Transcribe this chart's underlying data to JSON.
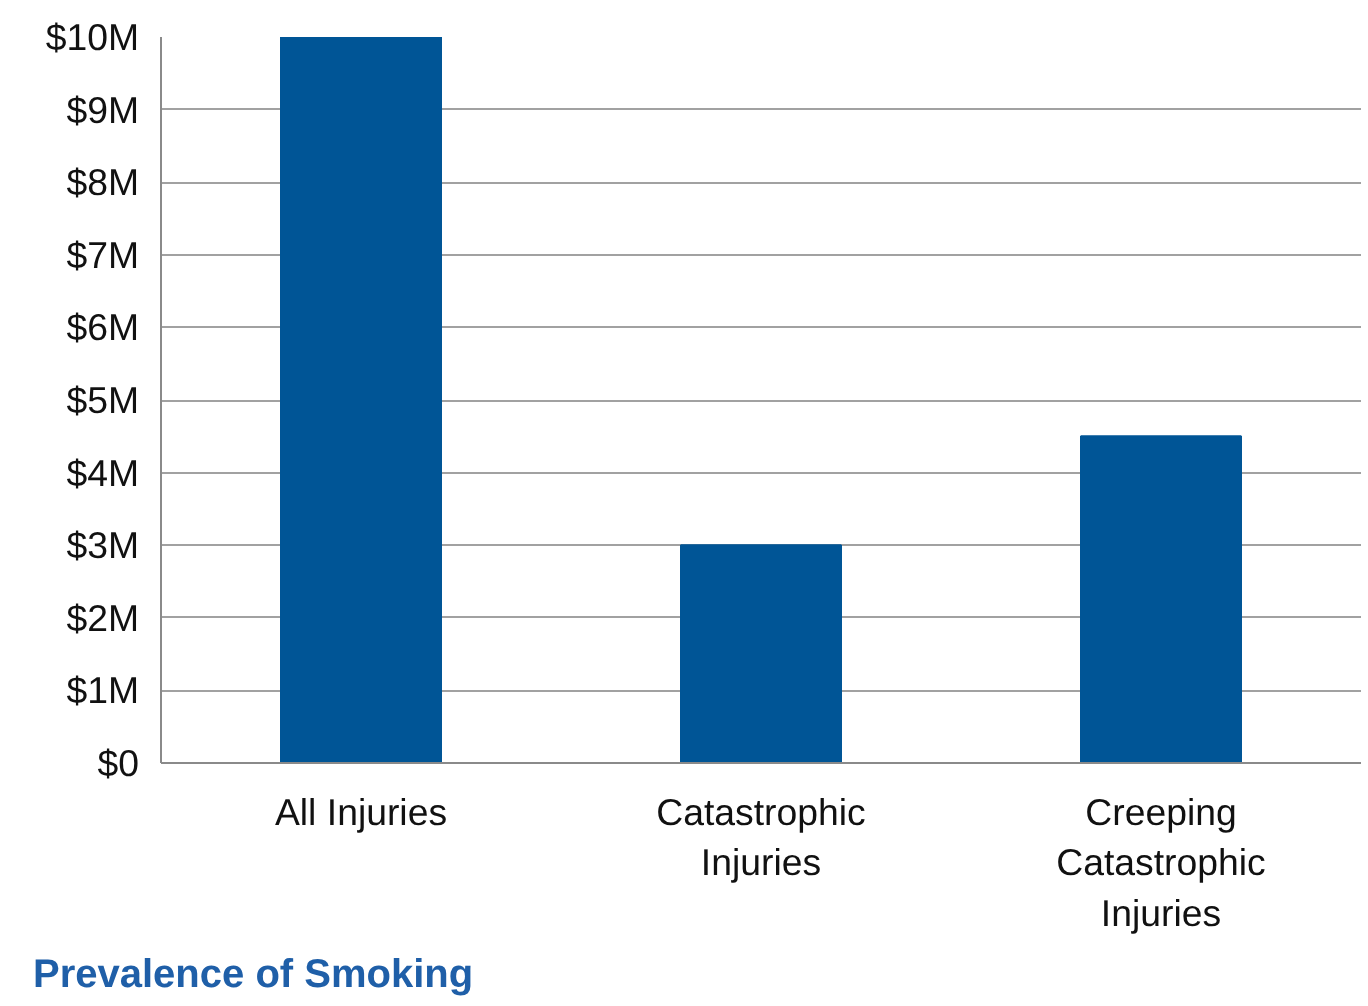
{
  "chart_data": {
    "type": "bar",
    "categories": [
      "All Injuries",
      "Catastrophic Injuries",
      "Creeping Catastrophic Injuries"
    ],
    "values": [
      10,
      3,
      4.5
    ],
    "color": "#005596",
    "ylim": [
      0,
      10
    ],
    "yticks": [
      {
        "value": 0,
        "label": "$0"
      },
      {
        "value": 1,
        "label": "$1M"
      },
      {
        "value": 2,
        "label": "$2M"
      },
      {
        "value": 3,
        "label": "$3M"
      },
      {
        "value": 4,
        "label": "$4M"
      },
      {
        "value": 5,
        "label": "$5M"
      },
      {
        "value": 6,
        "label": "$6M"
      },
      {
        "value": 7,
        "label": "$7M"
      },
      {
        "value": 8,
        "label": "$8M"
      },
      {
        "value": 9,
        "label": "$9M"
      },
      {
        "value": 10,
        "label": "$10M"
      }
    ],
    "grid": "y",
    "annotations": [
      "Prevalence of Smoking"
    ]
  }
}
